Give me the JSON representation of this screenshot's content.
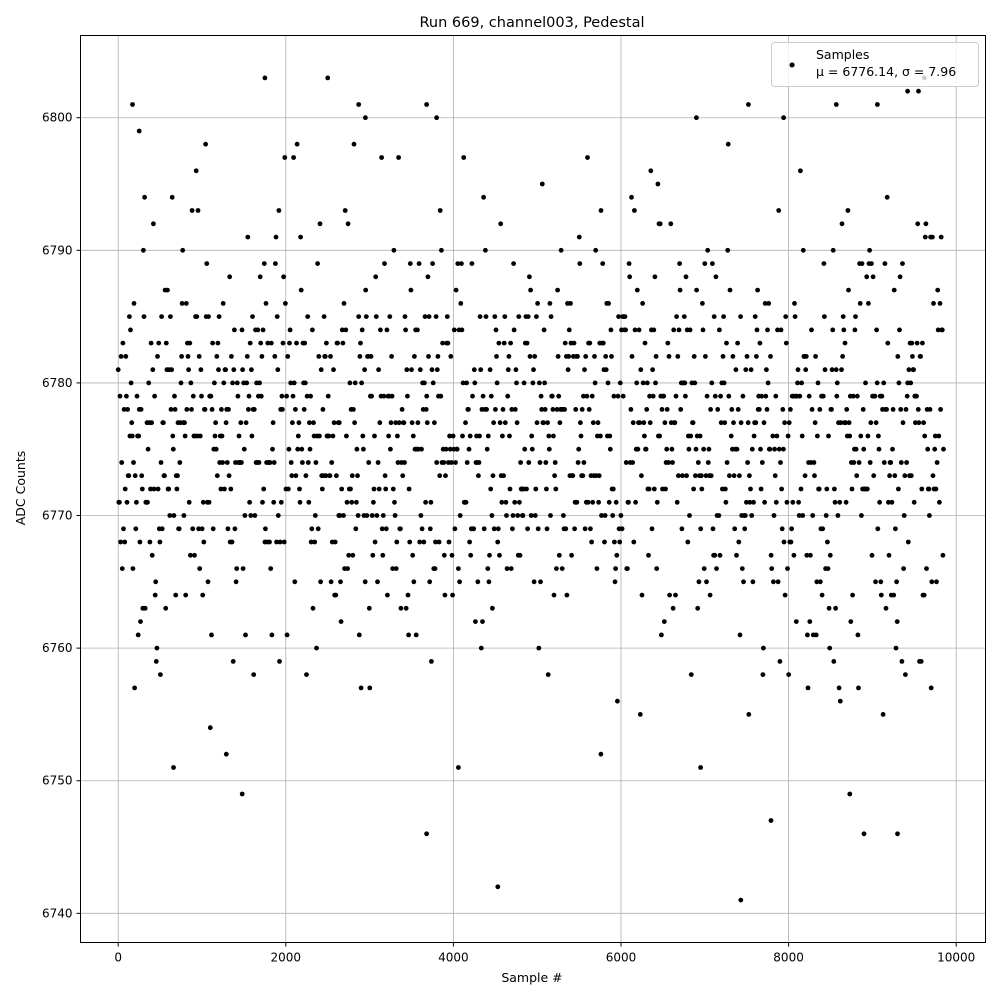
{
  "chart_data": {
    "type": "scatter",
    "title": "Run 669, channel003, Pedestal",
    "xlabel": "Sample #",
    "ylabel": "ADC Counts",
    "xlim": [
      -450,
      10350
    ],
    "ylim": [
      6737.8,
      6806.2
    ],
    "xticks": [
      0,
      2000,
      4000,
      6000,
      8000,
      10000
    ],
    "yticks": [
      6740,
      6750,
      6760,
      6770,
      6780,
      6790,
      6800
    ],
    "grid": true,
    "legend": {
      "placement": "top-right",
      "label": "Samples",
      "stats": "μ = 6776.14, σ = 7.96"
    },
    "series": [
      {
        "name": "Samples",
        "color": "#000000",
        "marker": "dot",
        "sample_range": [
          0,
          9850
        ],
        "mean": 6776.14,
        "sigma": 7.96,
        "notable_points": [
          {
            "x": 170,
            "y": 6801
          },
          {
            "x": 250,
            "y": 6799
          },
          {
            "x": 1750,
            "y": 6803
          },
          {
            "x": 2500,
            "y": 6803
          },
          {
            "x": 2870,
            "y": 6801
          },
          {
            "x": 3680,
            "y": 6801
          },
          {
            "x": 1480,
            "y": 6749
          },
          {
            "x": 660,
            "y": 6751
          },
          {
            "x": 1290,
            "y": 6752
          },
          {
            "x": 3680,
            "y": 6746
          },
          {
            "x": 4060,
            "y": 6751
          },
          {
            "x": 4530,
            "y": 6742
          },
          {
            "x": 5760,
            "y": 6752
          },
          {
            "x": 6950,
            "y": 6751
          },
          {
            "x": 7430,
            "y": 6741
          },
          {
            "x": 7790,
            "y": 6747
          },
          {
            "x": 8730,
            "y": 6749
          },
          {
            "x": 8900,
            "y": 6746
          },
          {
            "x": 9300,
            "y": 6746
          },
          {
            "x": 8050,
            "y": 6804
          },
          {
            "x": 9420,
            "y": 6802
          },
          {
            "x": 9550,
            "y": 6802
          },
          {
            "x": 9620,
            "y": 6803
          },
          {
            "x": 7520,
            "y": 6801
          },
          {
            "x": 8570,
            "y": 6801
          },
          {
            "x": 9060,
            "y": 6801
          },
          {
            "x": 6900,
            "y": 6800
          },
          {
            "x": 7940,
            "y": 6800
          },
          {
            "x": 3800,
            "y": 6800
          },
          {
            "x": 2950,
            "y": 6800
          }
        ]
      }
    ]
  }
}
